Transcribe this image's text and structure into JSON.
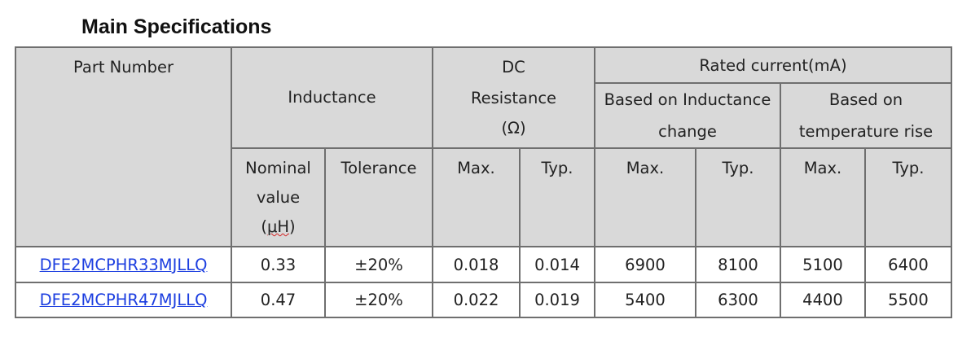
{
  "title": "Main Specifications",
  "headers": {
    "part_number": "Part Number",
    "inductance": "Inductance",
    "dc_resistance": "DC Resistance",
    "dc_resistance_unit": "(Ω)",
    "rated_current": "Rated current(mA)",
    "based_on_inductance": "Based on Inductance change",
    "based_on_temperature": "Based on temperature rise",
    "nominal_value_l1": "Nominal",
    "nominal_value_l2": "value",
    "nominal_unit_open": "(",
    "nominal_unit": "μH",
    "nominal_unit_close": ")",
    "tolerance": "Tolerance",
    "dcr_max": "Max.",
    "dcr_typ": "Typ.",
    "ind_max": "Max.",
    "ind_typ": "Typ.",
    "temp_max": "Max.",
    "temp_typ": "Typ."
  },
  "rows": [
    {
      "part_number": "DFE2MCPHR33MJLLQ",
      "nominal": "0.33",
      "tolerance": "±20%",
      "dcr_max": "0.018",
      "dcr_typ": "0.014",
      "ind_max": "6900",
      "ind_typ": "8100",
      "temp_max": "5100",
      "temp_typ": "6400"
    },
    {
      "part_number": "DFE2MCPHR47MJLLQ",
      "nominal": "0.47",
      "tolerance": "±20%",
      "dcr_max": "0.022",
      "dcr_typ": "0.019",
      "ind_max": "5400",
      "ind_typ": "6300",
      "temp_max": "4400",
      "temp_typ": "5500"
    }
  ],
  "colors": {
    "header_bg": "#d9d9d9",
    "border": "#6f6f6f",
    "link": "#1c3ee0"
  }
}
